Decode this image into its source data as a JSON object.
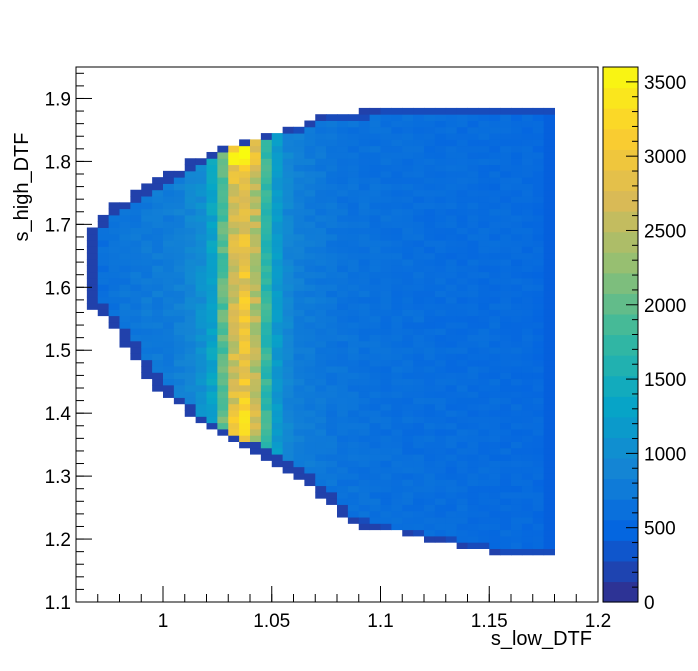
{
  "chart_data": {
    "type": "heatmap",
    "title": "",
    "xlabel": "s_low_DTF",
    "ylabel": "s_high_DTF",
    "xlim": [
      0.96,
      1.2
    ],
    "ylim": [
      1.1,
      1.95
    ],
    "x_ticks": [
      1,
      1.05,
      1.1,
      1.15,
      1.2
    ],
    "x_tick_labels": [
      "1",
      "1.05",
      "1.1",
      "1.15",
      "1.2"
    ],
    "y_ticks": [
      1.1,
      1.2,
      1.3,
      1.4,
      1.5,
      1.6,
      1.7,
      1.8,
      1.9
    ],
    "y_tick_labels": [
      "1.1",
      "1.2",
      "1.3",
      "1.4",
      "1.5",
      "1.6",
      "1.7",
      "1.8",
      "1.9"
    ],
    "zlim": [
      0,
      3600
    ],
    "colorbar_ticks": [
      0,
      500,
      1000,
      1500,
      2000,
      2500,
      3000,
      3500
    ],
    "colorbar_tick_labels": [
      "0",
      "500",
      "1000",
      "1500",
      "2000",
      "2500",
      "3000",
      "3500"
    ],
    "colormap": "parula",
    "colormap_stops": [
      "#352a87",
      "#0363e1",
      "#1485d4",
      "#06a7c6",
      "#38b99e",
      "#92bf73",
      "#d9ba56",
      "#fcce2e",
      "#f9fb0e"
    ],
    "bins": {
      "x_min": 0.965,
      "x_width": 0.005,
      "nx": 43,
      "y_min": 1.175,
      "y_width": 0.01,
      "ny": 72,
      "region_x_max": 1.18,
      "boundary_points": [
        [
          1.18,
          1.175
        ],
        [
          1.155,
          1.175
        ],
        [
          1.115,
          1.205
        ],
        [
          1.085,
          1.225
        ],
        [
          1.065,
          1.295
        ],
        [
          1.05,
          1.325
        ],
        [
          1.04,
          1.345
        ],
        [
          1.02,
          1.375
        ],
        [
          0.995,
          1.445
        ],
        [
          0.975,
          1.545
        ],
        [
          0.965,
          1.575
        ],
        [
          0.965,
          1.685
        ],
        [
          0.975,
          1.725
        ],
        [
          0.995,
          1.765
        ],
        [
          1.02,
          1.815
        ],
        [
          1.04,
          1.835
        ],
        [
          1.06,
          1.855
        ],
        [
          1.075,
          1.875
        ],
        [
          1.11,
          1.885
        ],
        [
          1.18,
          1.885
        ]
      ],
      "x_profile": [
        [
          0.965,
          520
        ],
        [
          0.975,
          640
        ],
        [
          0.985,
          700
        ],
        [
          0.995,
          760
        ],
        [
          1.005,
          780
        ],
        [
          1.015,
          960
        ],
        [
          1.02,
          1100
        ],
        [
          1.025,
          1500
        ],
        [
          1.03,
          2400
        ],
        [
          1.035,
          2950
        ],
        [
          1.04,
          2850
        ],
        [
          1.045,
          2100
        ],
        [
          1.05,
          1350
        ],
        [
          1.055,
          1000
        ],
        [
          1.06,
          830
        ],
        [
          1.07,
          740
        ],
        [
          1.08,
          670
        ],
        [
          1.1,
          620
        ],
        [
          1.13,
          580
        ],
        [
          1.16,
          560
        ],
        [
          1.175,
          530
        ],
        [
          1.18,
          420
        ]
      ],
      "y_bumps": [
        {
          "y": 1.81,
          "amplitude": 0.35,
          "width": 0.025
        },
        {
          "y": 1.39,
          "amplitude": 0.18,
          "width": 0.025
        }
      ],
      "x_bump_center": 1.037,
      "edge_dark_width": 0.006,
      "edge_dark_value": 180,
      "right_column_value": 430
    }
  }
}
